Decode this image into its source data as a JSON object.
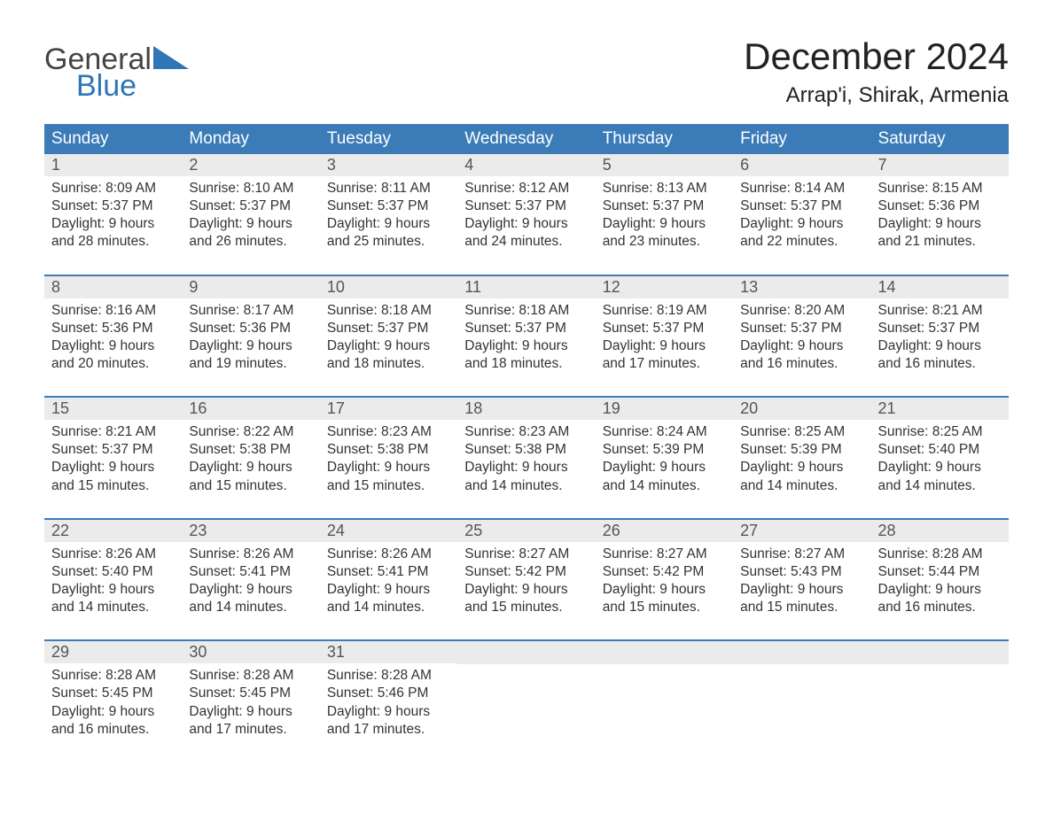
{
  "logo": {
    "general": "General",
    "blue": "Blue"
  },
  "colors": {
    "header_bg": "#3b7cb8",
    "header_text": "#ffffff",
    "daynum_bg": "#ebebeb",
    "daynum_text": "#555555",
    "body_text": "#333333",
    "week_border": "#3b7cb8",
    "logo_blue": "#2e76b6",
    "logo_gray": "#444444",
    "page_bg": "#ffffff"
  },
  "typography": {
    "month_title_fontsize": 42,
    "location_fontsize": 24,
    "day_header_fontsize": 19,
    "day_number_fontsize": 18,
    "body_fontsize": 15.5,
    "logo_fontsize": 34
  },
  "title": "December 2024",
  "location": "Arrap'i, Shirak, Armenia",
  "day_names": [
    "Sunday",
    "Monday",
    "Tuesday",
    "Wednesday",
    "Thursday",
    "Friday",
    "Saturday"
  ],
  "weeks": [
    [
      {
        "n": "1",
        "sr": "Sunrise: 8:09 AM",
        "ss": "Sunset: 5:37 PM",
        "d1": "Daylight: 9 hours",
        "d2": "and 28 minutes."
      },
      {
        "n": "2",
        "sr": "Sunrise: 8:10 AM",
        "ss": "Sunset: 5:37 PM",
        "d1": "Daylight: 9 hours",
        "d2": "and 26 minutes."
      },
      {
        "n": "3",
        "sr": "Sunrise: 8:11 AM",
        "ss": "Sunset: 5:37 PM",
        "d1": "Daylight: 9 hours",
        "d2": "and 25 minutes."
      },
      {
        "n": "4",
        "sr": "Sunrise: 8:12 AM",
        "ss": "Sunset: 5:37 PM",
        "d1": "Daylight: 9 hours",
        "d2": "and 24 minutes."
      },
      {
        "n": "5",
        "sr": "Sunrise: 8:13 AM",
        "ss": "Sunset: 5:37 PM",
        "d1": "Daylight: 9 hours",
        "d2": "and 23 minutes."
      },
      {
        "n": "6",
        "sr": "Sunrise: 8:14 AM",
        "ss": "Sunset: 5:37 PM",
        "d1": "Daylight: 9 hours",
        "d2": "and 22 minutes."
      },
      {
        "n": "7",
        "sr": "Sunrise: 8:15 AM",
        "ss": "Sunset: 5:36 PM",
        "d1": "Daylight: 9 hours",
        "d2": "and 21 minutes."
      }
    ],
    [
      {
        "n": "8",
        "sr": "Sunrise: 8:16 AM",
        "ss": "Sunset: 5:36 PM",
        "d1": "Daylight: 9 hours",
        "d2": "and 20 minutes."
      },
      {
        "n": "9",
        "sr": "Sunrise: 8:17 AM",
        "ss": "Sunset: 5:36 PM",
        "d1": "Daylight: 9 hours",
        "d2": "and 19 minutes."
      },
      {
        "n": "10",
        "sr": "Sunrise: 8:18 AM",
        "ss": "Sunset: 5:37 PM",
        "d1": "Daylight: 9 hours",
        "d2": "and 18 minutes."
      },
      {
        "n": "11",
        "sr": "Sunrise: 8:18 AM",
        "ss": "Sunset: 5:37 PM",
        "d1": "Daylight: 9 hours",
        "d2": "and 18 minutes."
      },
      {
        "n": "12",
        "sr": "Sunrise: 8:19 AM",
        "ss": "Sunset: 5:37 PM",
        "d1": "Daylight: 9 hours",
        "d2": "and 17 minutes."
      },
      {
        "n": "13",
        "sr": "Sunrise: 8:20 AM",
        "ss": "Sunset: 5:37 PM",
        "d1": "Daylight: 9 hours",
        "d2": "and 16 minutes."
      },
      {
        "n": "14",
        "sr": "Sunrise: 8:21 AM",
        "ss": "Sunset: 5:37 PM",
        "d1": "Daylight: 9 hours",
        "d2": "and 16 minutes."
      }
    ],
    [
      {
        "n": "15",
        "sr": "Sunrise: 8:21 AM",
        "ss": "Sunset: 5:37 PM",
        "d1": "Daylight: 9 hours",
        "d2": "and 15 minutes."
      },
      {
        "n": "16",
        "sr": "Sunrise: 8:22 AM",
        "ss": "Sunset: 5:38 PM",
        "d1": "Daylight: 9 hours",
        "d2": "and 15 minutes."
      },
      {
        "n": "17",
        "sr": "Sunrise: 8:23 AM",
        "ss": "Sunset: 5:38 PM",
        "d1": "Daylight: 9 hours",
        "d2": "and 15 minutes."
      },
      {
        "n": "18",
        "sr": "Sunrise: 8:23 AM",
        "ss": "Sunset: 5:38 PM",
        "d1": "Daylight: 9 hours",
        "d2": "and 14 minutes."
      },
      {
        "n": "19",
        "sr": "Sunrise: 8:24 AM",
        "ss": "Sunset: 5:39 PM",
        "d1": "Daylight: 9 hours",
        "d2": "and 14 minutes."
      },
      {
        "n": "20",
        "sr": "Sunrise: 8:25 AM",
        "ss": "Sunset: 5:39 PM",
        "d1": "Daylight: 9 hours",
        "d2": "and 14 minutes."
      },
      {
        "n": "21",
        "sr": "Sunrise: 8:25 AM",
        "ss": "Sunset: 5:40 PM",
        "d1": "Daylight: 9 hours",
        "d2": "and 14 minutes."
      }
    ],
    [
      {
        "n": "22",
        "sr": "Sunrise: 8:26 AM",
        "ss": "Sunset: 5:40 PM",
        "d1": "Daylight: 9 hours",
        "d2": "and 14 minutes."
      },
      {
        "n": "23",
        "sr": "Sunrise: 8:26 AM",
        "ss": "Sunset: 5:41 PM",
        "d1": "Daylight: 9 hours",
        "d2": "and 14 minutes."
      },
      {
        "n": "24",
        "sr": "Sunrise: 8:26 AM",
        "ss": "Sunset: 5:41 PM",
        "d1": "Daylight: 9 hours",
        "d2": "and 14 minutes."
      },
      {
        "n": "25",
        "sr": "Sunrise: 8:27 AM",
        "ss": "Sunset: 5:42 PM",
        "d1": "Daylight: 9 hours",
        "d2": "and 15 minutes."
      },
      {
        "n": "26",
        "sr": "Sunrise: 8:27 AM",
        "ss": "Sunset: 5:42 PM",
        "d1": "Daylight: 9 hours",
        "d2": "and 15 minutes."
      },
      {
        "n": "27",
        "sr": "Sunrise: 8:27 AM",
        "ss": "Sunset: 5:43 PM",
        "d1": "Daylight: 9 hours",
        "d2": "and 15 minutes."
      },
      {
        "n": "28",
        "sr": "Sunrise: 8:28 AM",
        "ss": "Sunset: 5:44 PM",
        "d1": "Daylight: 9 hours",
        "d2": "and 16 minutes."
      }
    ],
    [
      {
        "n": "29",
        "sr": "Sunrise: 8:28 AM",
        "ss": "Sunset: 5:45 PM",
        "d1": "Daylight: 9 hours",
        "d2": "and 16 minutes."
      },
      {
        "n": "30",
        "sr": "Sunrise: 8:28 AM",
        "ss": "Sunset: 5:45 PM",
        "d1": "Daylight: 9 hours",
        "d2": "and 17 minutes."
      },
      {
        "n": "31",
        "sr": "Sunrise: 8:28 AM",
        "ss": "Sunset: 5:46 PM",
        "d1": "Daylight: 9 hours",
        "d2": "and 17 minutes."
      },
      null,
      null,
      null,
      null
    ]
  ]
}
